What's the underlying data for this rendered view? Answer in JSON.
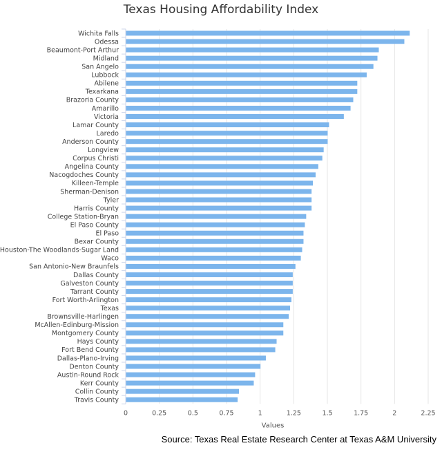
{
  "chart_data": {
    "type": "bar",
    "orientation": "horizontal",
    "title": "Texas Housing Affordability Index",
    "xlabel": "Values",
    "ylabel": "",
    "xlim": [
      0,
      2.25
    ],
    "x_ticks": [
      "0",
      "0.25",
      "0.5",
      "0.75",
      "1",
      "1.25",
      "1.5",
      "1.75",
      "2",
      "2.25"
    ],
    "x_tick_values": [
      0,
      0.25,
      0.5,
      0.75,
      1,
      1.25,
      1.5,
      1.75,
      2,
      2.25
    ],
    "grid": "vertical",
    "legend": "none",
    "bar_color": "#7cb5ec",
    "categories": [
      "Wichita Falls",
      "Odessa",
      "Beaumont-Port Arthur",
      "Midland",
      "San Angelo",
      "Lubbock",
      "Abilene",
      "Texarkana",
      "Brazoria County",
      "Amarillo",
      "Victoria",
      "Lamar County",
      "Laredo",
      "Anderson County",
      "Longview",
      "Corpus Christi",
      "Angelina County",
      "Nacogdoches County",
      "Killeen-Temple",
      "Sherman-Denison",
      "Tyler",
      "Harris County",
      "College Station-Bryan",
      "El Paso County",
      "El Paso",
      "Bexar County",
      "Houston-The Woodlands-Sugar Land",
      "Waco",
      "San Antonio-New Braunfels",
      "Dallas County",
      "Galveston County",
      "Tarrant County",
      "Fort Worth-Arlington",
      "Texas",
      "Brownsville-Harlingen",
      "McAllen-Edinburg-Mission",
      "Montgomery County",
      "Hays County",
      "Fort Bend County",
      "Dallas-Plano-Irving",
      "Denton County",
      "Austin-Round Rock",
      "Kerr County",
      "Collin County",
      "Travis County"
    ],
    "values": [
      2.11,
      2.07,
      1.88,
      1.87,
      1.84,
      1.79,
      1.72,
      1.72,
      1.69,
      1.67,
      1.62,
      1.51,
      1.5,
      1.5,
      1.47,
      1.46,
      1.43,
      1.41,
      1.39,
      1.38,
      1.38,
      1.38,
      1.34,
      1.33,
      1.32,
      1.32,
      1.31,
      1.3,
      1.26,
      1.24,
      1.24,
      1.24,
      1.23,
      1.22,
      1.21,
      1.17,
      1.17,
      1.12,
      1.11,
      1.04,
      1.0,
      0.96,
      0.95,
      0.84,
      0.83
    ]
  },
  "source_note": "Source: Texas Real Estate Research Center at Texas A&M University"
}
